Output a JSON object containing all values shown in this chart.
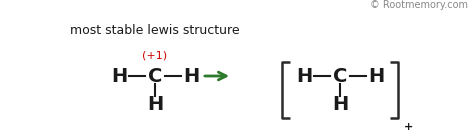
{
  "bg_color": "#ffffff",
  "title_text": "most stable lewis structure",
  "watermark": "© Rootmemory.com",
  "arrow_color": "#2d7a2d",
  "charge_color": "#cc0000",
  "charge_text": "(+1)",
  "plus_text": "+",
  "atom_color": "#1a1a1a",
  "bracket_color": "#2a2a2a",
  "font_size_main": 14,
  "font_size_watermark": 7,
  "font_size_title": 9,
  "font_size_charge": 8,
  "font_size_plus": 8
}
